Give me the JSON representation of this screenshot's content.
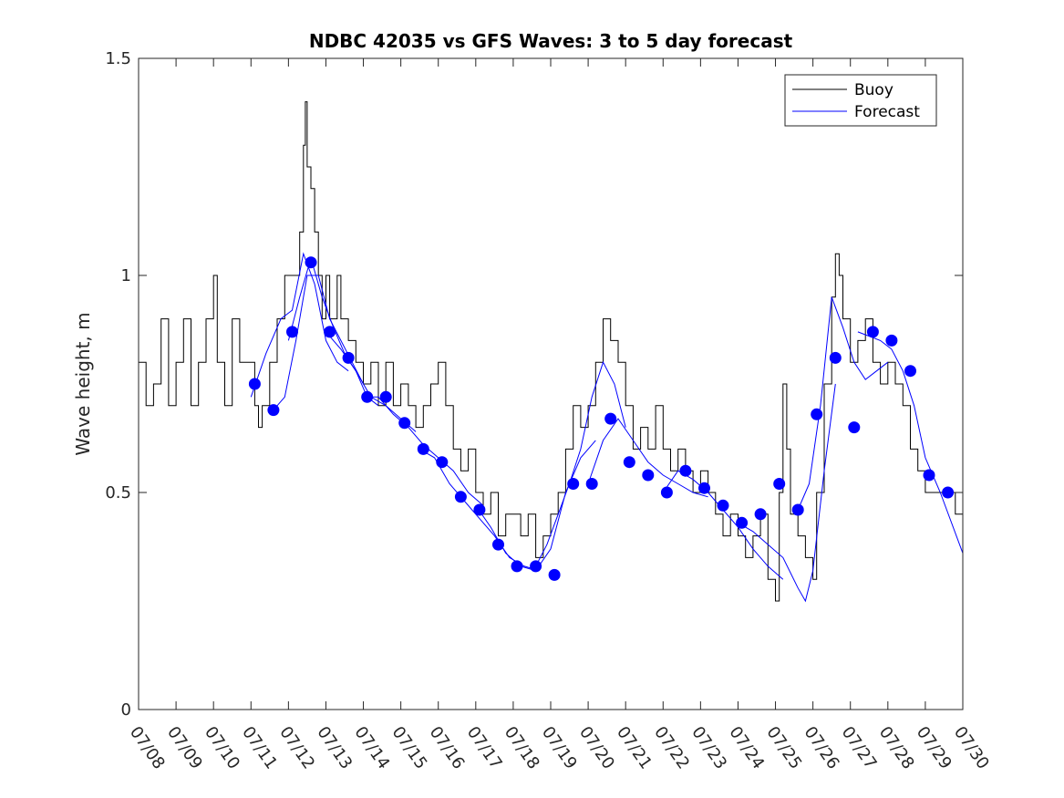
{
  "chart_data": {
    "type": "line",
    "title": "NDBC 42035 vs GFS Waves: 3 to 5 day forecast",
    "xlabel": "",
    "ylabel": "Wave height, m",
    "x_tick_labels": [
      "07/08",
      "07/09",
      "07/10",
      "07/11",
      "07/12",
      "07/13",
      "07/14",
      "07/15",
      "07/16",
      "07/17",
      "07/18",
      "07/19",
      "07/20",
      "07/21",
      "07/22",
      "07/23",
      "07/24",
      "07/25",
      "07/26",
      "07/27",
      "07/28",
      "07/29",
      "07/30"
    ],
    "y_tick_labels": [
      "0",
      "0.5",
      "1",
      "1.5"
    ],
    "xlim_days": [
      8,
      30
    ],
    "ylim": [
      0,
      1.5
    ],
    "grid": false,
    "legend": {
      "position": "top-right",
      "entries": [
        "Buoy",
        "Forecast"
      ]
    },
    "colors": {
      "buoy": "#000000",
      "forecast": "#0000ff",
      "markers": "#0000ff"
    },
    "series": [
      {
        "name": "Buoy",
        "points": [
          [
            8.0,
            0.8
          ],
          [
            8.2,
            0.7
          ],
          [
            8.4,
            0.75
          ],
          [
            8.6,
            0.9
          ],
          [
            8.8,
            0.7
          ],
          [
            9.0,
            0.8
          ],
          [
            9.2,
            0.9
          ],
          [
            9.4,
            0.7
          ],
          [
            9.6,
            0.8
          ],
          [
            9.8,
            0.9
          ],
          [
            10.0,
            1.0
          ],
          [
            10.1,
            0.8
          ],
          [
            10.3,
            0.7
          ],
          [
            10.5,
            0.9
          ],
          [
            10.7,
            0.8
          ],
          [
            11.0,
            0.8
          ],
          [
            11.1,
            0.7
          ],
          [
            11.2,
            0.65
          ],
          [
            11.3,
            0.7
          ],
          [
            11.5,
            0.8
          ],
          [
            11.7,
            0.9
          ],
          [
            11.9,
            1.0
          ],
          [
            12.1,
            1.0
          ],
          [
            12.3,
            1.1
          ],
          [
            12.4,
            1.3
          ],
          [
            12.45,
            1.4
          ],
          [
            12.5,
            1.25
          ],
          [
            12.6,
            1.2
          ],
          [
            12.7,
            1.1
          ],
          [
            12.8,
            1.0
          ],
          [
            12.9,
            0.9
          ],
          [
            13.0,
            1.0
          ],
          [
            13.1,
            0.9
          ],
          [
            13.3,
            1.0
          ],
          [
            13.4,
            0.9
          ],
          [
            13.6,
            0.85
          ],
          [
            13.8,
            0.8
          ],
          [
            14.0,
            0.75
          ],
          [
            14.2,
            0.8
          ],
          [
            14.4,
            0.7
          ],
          [
            14.6,
            0.8
          ],
          [
            14.8,
            0.7
          ],
          [
            15.0,
            0.75
          ],
          [
            15.2,
            0.7
          ],
          [
            15.4,
            0.65
          ],
          [
            15.6,
            0.7
          ],
          [
            15.8,
            0.75
          ],
          [
            16.0,
            0.8
          ],
          [
            16.2,
            0.7
          ],
          [
            16.4,
            0.6
          ],
          [
            16.6,
            0.55
          ],
          [
            16.8,
            0.6
          ],
          [
            17.0,
            0.5
          ],
          [
            17.2,
            0.45
          ],
          [
            17.4,
            0.5
          ],
          [
            17.6,
            0.4
          ],
          [
            17.8,
            0.45
          ],
          [
            18.0,
            0.45
          ],
          [
            18.2,
            0.4
          ],
          [
            18.4,
            0.45
          ],
          [
            18.6,
            0.35
          ],
          [
            18.8,
            0.4
          ],
          [
            19.0,
            0.45
          ],
          [
            19.2,
            0.5
          ],
          [
            19.4,
            0.6
          ],
          [
            19.6,
            0.7
          ],
          [
            19.8,
            0.65
          ],
          [
            20.0,
            0.7
          ],
          [
            20.2,
            0.8
          ],
          [
            20.4,
            0.9
          ],
          [
            20.6,
            0.85
          ],
          [
            20.8,
            0.8
          ],
          [
            21.0,
            0.7
          ],
          [
            21.2,
            0.6
          ],
          [
            21.4,
            0.65
          ],
          [
            21.6,
            0.6
          ],
          [
            21.8,
            0.7
          ],
          [
            22.0,
            0.6
          ],
          [
            22.2,
            0.55
          ],
          [
            22.4,
            0.6
          ],
          [
            22.6,
            0.55
          ],
          [
            22.8,
            0.5
          ],
          [
            23.0,
            0.55
          ],
          [
            23.2,
            0.5
          ],
          [
            23.4,
            0.45
          ],
          [
            23.6,
            0.4
          ],
          [
            23.8,
            0.45
          ],
          [
            24.0,
            0.4
          ],
          [
            24.2,
            0.35
          ],
          [
            24.4,
            0.4
          ],
          [
            24.6,
            0.45
          ],
          [
            24.8,
            0.3
          ],
          [
            25.0,
            0.25
          ],
          [
            25.1,
            0.5
          ],
          [
            25.2,
            0.75
          ],
          [
            25.3,
            0.6
          ],
          [
            25.4,
            0.45
          ],
          [
            25.6,
            0.4
          ],
          [
            25.8,
            0.35
          ],
          [
            26.0,
            0.3
          ],
          [
            26.1,
            0.5
          ],
          [
            26.3,
            0.75
          ],
          [
            26.5,
            0.95
          ],
          [
            26.6,
            1.05
          ],
          [
            26.7,
            1.0
          ],
          [
            26.8,
            0.9
          ],
          [
            27.0,
            0.8
          ],
          [
            27.2,
            0.85
          ],
          [
            27.4,
            0.9
          ],
          [
            27.6,
            0.8
          ],
          [
            27.8,
            0.75
          ],
          [
            28.0,
            0.8
          ],
          [
            28.2,
            0.75
          ],
          [
            28.4,
            0.7
          ],
          [
            28.6,
            0.6
          ],
          [
            28.8,
            0.55
          ],
          [
            29.0,
            0.5
          ],
          [
            29.2,
            0.5
          ],
          [
            29.4,
            0.5
          ],
          [
            29.6,
            0.5
          ],
          [
            29.8,
            0.45
          ],
          [
            30.0,
            0.35
          ]
        ]
      },
      {
        "name": "Forecast",
        "runs": [
          [
            [
              11.0,
              0.72
            ],
            [
              11.4,
              0.82
            ],
            [
              11.8,
              0.9
            ],
            [
              12.1,
              0.92
            ],
            [
              12.4,
              1.05
            ],
            [
              12.7,
              0.98
            ],
            [
              13.0,
              0.85
            ],
            [
              13.3,
              0.8
            ],
            [
              13.6,
              0.78
            ]
          ],
          [
            [
              11.6,
              0.69
            ],
            [
              11.9,
              0.72
            ],
            [
              12.2,
              0.85
            ],
            [
              12.5,
              1.0
            ],
            [
              12.8,
              1.0
            ],
            [
              13.1,
              0.9
            ],
            [
              13.4,
              0.85
            ],
            [
              13.7,
              0.8
            ],
            [
              14.0,
              0.75
            ]
          ],
          [
            [
              12.0,
              0.85
            ],
            [
              12.3,
              0.95
            ],
            [
              12.6,
              1.04
            ],
            [
              12.9,
              0.95
            ],
            [
              13.2,
              0.88
            ],
            [
              13.5,
              0.82
            ],
            [
              13.8,
              0.78
            ],
            [
              14.1,
              0.72
            ],
            [
              14.4,
              0.7
            ]
          ],
          [
            [
              13.0,
              0.87
            ],
            [
              13.4,
              0.83
            ],
            [
              13.8,
              0.78
            ],
            [
              14.2,
              0.72
            ],
            [
              14.6,
              0.7
            ],
            [
              15.0,
              0.67
            ],
            [
              15.4,
              0.64
            ]
          ],
          [
            [
              14.0,
              0.72
            ],
            [
              14.4,
              0.72
            ],
            [
              14.8,
              0.68
            ],
            [
              15.2,
              0.65
            ],
            [
              15.6,
              0.61
            ],
            [
              16.0,
              0.58
            ],
            [
              16.4,
              0.55
            ],
            [
              16.8,
              0.5
            ],
            [
              17.2,
              0.47
            ]
          ],
          [
            [
              15.5,
              0.6
            ],
            [
              15.9,
              0.58
            ],
            [
              16.3,
              0.52
            ],
            [
              16.7,
              0.48
            ],
            [
              17.1,
              0.44
            ],
            [
              17.5,
              0.4
            ],
            [
              17.9,
              0.35
            ],
            [
              18.3,
              0.33
            ],
            [
              18.7,
              0.32
            ]
          ],
          [
            [
              17.0,
              0.47
            ],
            [
              17.4,
              0.42
            ],
            [
              17.8,
              0.36
            ],
            [
              18.2,
              0.33
            ],
            [
              18.6,
              0.32
            ],
            [
              19.0,
              0.37
            ],
            [
              19.4,
              0.5
            ],
            [
              19.8,
              0.58
            ],
            [
              20.2,
              0.62
            ]
          ],
          [
            [
              18.6,
              0.33
            ],
            [
              18.9,
              0.38
            ],
            [
              19.2,
              0.45
            ],
            [
              19.5,
              0.52
            ],
            [
              19.8,
              0.6
            ],
            [
              20.1,
              0.72
            ],
            [
              20.4,
              0.8
            ],
            [
              20.7,
              0.75
            ],
            [
              21.0,
              0.65
            ]
          ],
          [
            [
              20.0,
              0.52
            ],
            [
              20.4,
              0.62
            ],
            [
              20.8,
              0.67
            ],
            [
              21.2,
              0.62
            ],
            [
              21.6,
              0.57
            ],
            [
              22.0,
              0.54
            ],
            [
              22.4,
              0.52
            ],
            [
              22.8,
              0.5
            ],
            [
              23.2,
              0.49
            ]
          ],
          [
            [
              22.0,
              0.5
            ],
            [
              22.4,
              0.55
            ],
            [
              22.8,
              0.53
            ],
            [
              23.2,
              0.5
            ],
            [
              23.6,
              0.46
            ],
            [
              24.0,
              0.42
            ],
            [
              24.4,
              0.37
            ],
            [
              24.8,
              0.33
            ],
            [
              25.2,
              0.3
            ]
          ],
          [
            [
              24.0,
              0.43
            ],
            [
              24.4,
              0.41
            ],
            [
              24.8,
              0.38
            ],
            [
              25.2,
              0.35
            ],
            [
              25.6,
              0.28
            ],
            [
              25.8,
              0.25
            ],
            [
              26.0,
              0.32
            ],
            [
              26.3,
              0.55
            ],
            [
              26.6,
              0.75
            ]
          ],
          [
            [
              25.6,
              0.46
            ],
            [
              25.9,
              0.52
            ],
            [
              26.2,
              0.7
            ],
            [
              26.5,
              0.95
            ],
            [
              26.8,
              0.88
            ],
            [
              27.1,
              0.8
            ],
            [
              27.4,
              0.76
            ],
            [
              27.7,
              0.78
            ],
            [
              28.0,
              0.8
            ]
          ],
          [
            [
              27.2,
              0.87
            ],
            [
              27.5,
              0.86
            ],
            [
              27.8,
              0.85
            ],
            [
              28.1,
              0.83
            ],
            [
              28.4,
              0.78
            ],
            [
              28.7,
              0.7
            ],
            [
              29.0,
              0.58
            ],
            [
              29.4,
              0.5
            ],
            [
              30.0,
              0.36
            ]
          ]
        ]
      },
      {
        "name": "markers",
        "points": [
          [
            11.1,
            0.75
          ],
          [
            11.6,
            0.69
          ],
          [
            12.1,
            0.87
          ],
          [
            12.6,
            1.03
          ],
          [
            13.1,
            0.87
          ],
          [
            13.6,
            0.81
          ],
          [
            14.1,
            0.72
          ],
          [
            14.6,
            0.72
          ],
          [
            15.1,
            0.66
          ],
          [
            15.6,
            0.6
          ],
          [
            16.1,
            0.57
          ],
          [
            16.6,
            0.49
          ],
          [
            17.1,
            0.46
          ],
          [
            17.6,
            0.38
          ],
          [
            18.1,
            0.33
          ],
          [
            18.6,
            0.33
          ],
          [
            19.1,
            0.31
          ],
          [
            19.6,
            0.52
          ],
          [
            20.1,
            0.52
          ],
          [
            20.6,
            0.67
          ],
          [
            21.1,
            0.57
          ],
          [
            21.6,
            0.54
          ],
          [
            22.1,
            0.5
          ],
          [
            22.6,
            0.55
          ],
          [
            23.1,
            0.51
          ],
          [
            23.6,
            0.47
          ],
          [
            24.1,
            0.43
          ],
          [
            24.6,
            0.45
          ],
          [
            25.1,
            0.52
          ],
          [
            25.6,
            0.46
          ],
          [
            26.1,
            0.68
          ],
          [
            26.6,
            0.81
          ],
          [
            27.1,
            0.65
          ],
          [
            27.6,
            0.87
          ],
          [
            28.1,
            0.85
          ],
          [
            28.6,
            0.78
          ],
          [
            29.1,
            0.54
          ],
          [
            29.6,
            0.5
          ]
        ]
      }
    ]
  }
}
